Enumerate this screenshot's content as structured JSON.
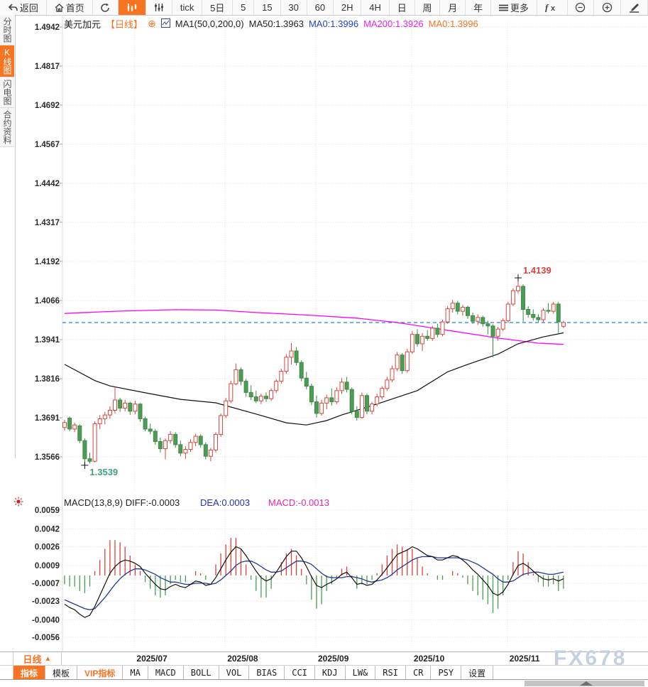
{
  "toolbar": {
    "items": [
      {
        "id": "back",
        "icon": "back-arrow-icon",
        "label": "返回"
      },
      {
        "id": "home",
        "icon": "home-icon",
        "label": "首页"
      },
      {
        "id": "refresh",
        "icon": "refresh-icon",
        "label": ""
      },
      {
        "id": "candle-chart",
        "icon": "candle-chart-icon",
        "label": "",
        "active": true
      },
      {
        "id": "indicator-sliders",
        "icon": "sliders-icon",
        "label": ""
      },
      {
        "id": "tick",
        "label": "tick"
      },
      {
        "id": "5d",
        "label": "5日"
      },
      {
        "id": "m5",
        "label": "5"
      },
      {
        "id": "m15",
        "label": "15"
      },
      {
        "id": "m30",
        "label": "30"
      },
      {
        "id": "m60",
        "label": "60"
      },
      {
        "id": "h2",
        "label": "2H"
      },
      {
        "id": "h4",
        "label": "4H"
      },
      {
        "id": "day",
        "label": "日"
      },
      {
        "id": "week",
        "label": "周"
      },
      {
        "id": "month",
        "label": "月"
      },
      {
        "id": "year",
        "label": "年"
      },
      {
        "id": "more",
        "icon": "menu-icon",
        "label": "更多"
      },
      {
        "id": "fx",
        "icon": "fx-icon",
        "label": ""
      },
      {
        "id": "zoom-out",
        "icon": "zoom-out-icon",
        "label": ""
      },
      {
        "id": "zoom-in",
        "icon": "zoom-in-icon",
        "label": ""
      },
      {
        "id": "draw",
        "icon": "pen-icon",
        "label": ""
      }
    ]
  },
  "sidebar": {
    "tabs": [
      {
        "label": "分时图",
        "active": false
      },
      {
        "label": "K线图",
        "active": true
      },
      {
        "label": "闪电图",
        "active": false
      },
      {
        "label": "合约资料",
        "active": false
      }
    ]
  },
  "price_header": {
    "symbol": "美元加元",
    "period": "【日线】",
    "plus_icon": "⊕",
    "ma_settings": "MA1(50,0,200,0)",
    "ma50_label": "MA50:1.3963",
    "ma0_blue_label": "MA0:1.3996",
    "ma200_label": "MA200:1.3926",
    "ma0_orange_label": "MA0:1.3996"
  },
  "macd_header": {
    "title": "MACD(13,8,9)",
    "diff_label": "DIFF:-0.0003",
    "dea_label": "DEA:0.0003",
    "macd_label": "MACD:-0.0013"
  },
  "bottom": {
    "period_label": "日线",
    "period_arrow": "▲",
    "tabs": [
      {
        "label": "指标",
        "active": true
      },
      {
        "label": "模板"
      },
      {
        "label": "VIP指标",
        "vip": true
      },
      {
        "label": "MA",
        "mono": true
      },
      {
        "label": "MACD",
        "mono": true
      },
      {
        "label": "BOLL",
        "mono": true
      },
      {
        "label": "VOL",
        "mono": true
      },
      {
        "label": "BIAS",
        "mono": true
      },
      {
        "label": "CCI",
        "mono": true
      },
      {
        "label": "KDJ",
        "mono": true
      },
      {
        "label": "LW&",
        "mono": true
      },
      {
        "label": "RSI",
        "mono": true
      },
      {
        "label": "CR",
        "mono": true
      },
      {
        "label": "PSY",
        "mono": true
      },
      {
        "label": "设置"
      }
    ],
    "watermark": "FX678"
  },
  "colors": {
    "accent_orange": "#f87421",
    "candle_up": "#d8443c",
    "candle_down_fill": "#4d9b55",
    "candle_down_stroke": "#3c8a46",
    "ma50_line": "#111111",
    "ma200_line": "#ff00ff",
    "diff_line": "#111111",
    "dea_line": "#223a8f",
    "last_price_line": "#1f7fe8",
    "annotation_high": "#d8443c",
    "annotation_low": "#3fa184",
    "grid": "#eedbdb",
    "header_blue": "#2244cc",
    "header_magenta": "#ee22ee",
    "macd_magenta": "#ee22aa"
  },
  "chart_data": {
    "type": "candlestick",
    "title": "美元加元 日线 (USD/CAD daily)",
    "price_axis_ticks": [
      1.4942,
      1.4817,
      1.4692,
      1.4567,
      1.4442,
      1.4317,
      1.4192,
      1.4066,
      1.3941,
      1.3816,
      1.3691,
      1.3566
    ],
    "x_labels": [
      "2025/07",
      "2025/08",
      "2025/09",
      "2025/10",
      "2025/11"
    ],
    "x_label_days": [
      14,
      32,
      50,
      69,
      88
    ],
    "last_price_line": 1.3996,
    "high_annotation": {
      "day": 90,
      "price": 1.4139,
      "label": "1.4139"
    },
    "low_annotation": {
      "day": 4,
      "price": 1.3539,
      "label": "1.3539"
    },
    "candles_ohlc": [
      [
        1.366,
        1.3685,
        1.365,
        1.3676
      ],
      [
        1.369,
        1.3695,
        1.3648,
        1.3655
      ],
      [
        1.3655,
        1.3675,
        1.3645,
        1.3668
      ],
      [
        1.3665,
        1.367,
        1.361,
        1.3618
      ],
      [
        1.3618,
        1.3625,
        1.3539,
        1.356
      ],
      [
        1.356,
        1.358,
        1.3545,
        1.3552
      ],
      [
        1.3552,
        1.368,
        1.3548,
        1.3672
      ],
      [
        1.3672,
        1.37,
        1.3655,
        1.3688
      ],
      [
        1.3688,
        1.371,
        1.367,
        1.37
      ],
      [
        1.37,
        1.3728,
        1.3688,
        1.3715
      ],
      [
        1.3715,
        1.379,
        1.3705,
        1.3748
      ],
      [
        1.3748,
        1.3755,
        1.371,
        1.3722
      ],
      [
        1.3722,
        1.3748,
        1.3712,
        1.3738
      ],
      [
        1.3738,
        1.3742,
        1.37,
        1.3712
      ],
      [
        1.3712,
        1.3745,
        1.3702,
        1.3735
      ],
      [
        1.3735,
        1.3738,
        1.3678,
        1.3688
      ],
      [
        1.3688,
        1.3695,
        1.3648,
        1.3655
      ],
      [
        1.3655,
        1.3672,
        1.3638,
        1.3648
      ],
      [
        1.3648,
        1.3655,
        1.3605,
        1.3615
      ],
      [
        1.3615,
        1.3628,
        1.358,
        1.3592
      ],
      [
        1.3592,
        1.3625,
        1.3558,
        1.3618
      ],
      [
        1.3618,
        1.3648,
        1.3608,
        1.3638
      ],
      [
        1.3638,
        1.3645,
        1.3595,
        1.3605
      ],
      [
        1.3605,
        1.3618,
        1.3568,
        1.3578
      ],
      [
        1.3578,
        1.36,
        1.356,
        1.359
      ],
      [
        1.359,
        1.3622,
        1.3582,
        1.3612
      ],
      [
        1.3612,
        1.364,
        1.36,
        1.3632
      ],
      [
        1.3632,
        1.3638,
        1.3595,
        1.3605
      ],
      [
        1.3605,
        1.3612,
        1.3558,
        1.3568
      ],
      [
        1.3568,
        1.3595,
        1.3552,
        1.3588
      ],
      [
        1.3588,
        1.3645,
        1.358,
        1.3638
      ],
      [
        1.3638,
        1.3705,
        1.363,
        1.3698
      ],
      [
        1.3698,
        1.3755,
        1.369,
        1.3745
      ],
      [
        1.3745,
        1.381,
        1.3738,
        1.38
      ],
      [
        1.38,
        1.3865,
        1.3795,
        1.3845
      ],
      [
        1.3845,
        1.3852,
        1.3795,
        1.3808
      ],
      [
        1.3808,
        1.3815,
        1.3758,
        1.3772
      ],
      [
        1.3772,
        1.3795,
        1.3748,
        1.3758
      ],
      [
        1.3758,
        1.3778,
        1.3738,
        1.3745
      ],
      [
        1.3745,
        1.3768,
        1.3735,
        1.376
      ],
      [
        1.376,
        1.3772,
        1.3742,
        1.3752
      ],
      [
        1.3752,
        1.3785,
        1.3745,
        1.3778
      ],
      [
        1.3778,
        1.3815,
        1.377,
        1.3808
      ],
      [
        1.3808,
        1.3848,
        1.38,
        1.384
      ],
      [
        1.384,
        1.3895,
        1.3832,
        1.3885
      ],
      [
        1.3885,
        1.393,
        1.3862,
        1.3905
      ],
      [
        1.3905,
        1.3918,
        1.3858,
        1.3868
      ],
      [
        1.3868,
        1.3875,
        1.3808,
        1.3818
      ],
      [
        1.3818,
        1.3838,
        1.3782,
        1.3792
      ],
      [
        1.3792,
        1.38,
        1.3732,
        1.3742
      ],
      [
        1.3742,
        1.3762,
        1.3692,
        1.3705
      ],
      [
        1.3705,
        1.3748,
        1.3698,
        1.3738
      ],
      [
        1.3738,
        1.3765,
        1.3718,
        1.3755
      ],
      [
        1.3755,
        1.3785,
        1.373,
        1.3742
      ],
      [
        1.3742,
        1.3788,
        1.3735,
        1.3778
      ],
      [
        1.3778,
        1.3818,
        1.3768,
        1.3805
      ],
      [
        1.3805,
        1.3822,
        1.3772,
        1.3782
      ],
      [
        1.3782,
        1.3788,
        1.3702,
        1.3712
      ],
      [
        1.3712,
        1.3728,
        1.3682,
        1.3692
      ],
      [
        1.3692,
        1.3772,
        1.3688,
        1.3762
      ],
      [
        1.3762,
        1.3768,
        1.3702,
        1.3712
      ],
      [
        1.3712,
        1.3742,
        1.3702,
        1.3735
      ],
      [
        1.3735,
        1.3768,
        1.3728,
        1.3758
      ],
      [
        1.3758,
        1.3792,
        1.375,
        1.3785
      ],
      [
        1.3785,
        1.3822,
        1.3778,
        1.3812
      ],
      [
        1.3812,
        1.3858,
        1.3805,
        1.3848
      ],
      [
        1.3848,
        1.3902,
        1.384,
        1.3892
      ],
      [
        1.3892,
        1.3898,
        1.3832,
        1.3842
      ],
      [
        1.3842,
        1.3912,
        1.3835,
        1.3902
      ],
      [
        1.3902,
        1.3968,
        1.3895,
        1.3958
      ],
      [
        1.3958,
        1.3975,
        1.3918,
        1.3928
      ],
      [
        1.3928,
        1.3962,
        1.3905,
        1.3952
      ],
      [
        1.3952,
        1.3972,
        1.3938,
        1.3945
      ],
      [
        1.3945,
        1.3985,
        1.3938,
        1.3978
      ],
      [
        1.3978,
        1.3992,
        1.3948,
        1.3958
      ],
      [
        1.3958,
        1.4005,
        1.3952,
        1.3998
      ],
      [
        1.3998,
        1.4048,
        1.3992,
        1.404
      ],
      [
        1.404,
        1.4068,
        1.4028,
        1.4058
      ],
      [
        1.4058,
        1.4065,
        1.4022,
        1.4032
      ],
      [
        1.4032,
        1.4052,
        1.4018,
        1.4045
      ],
      [
        1.4045,
        1.405,
        1.4008,
        1.4018
      ],
      [
        1.4018,
        1.4028,
        1.3992,
        1.4
      ],
      [
        1.4,
        1.4022,
        1.3988,
        1.4012
      ],
      [
        1.4012,
        1.4018,
        1.3982,
        1.3992
      ],
      [
        1.3992,
        1.4002,
        1.3958,
        1.3985
      ],
      [
        1.3985,
        1.399,
        1.3885,
        1.3952
      ],
      [
        1.3952,
        1.3982,
        1.3938,
        1.3975
      ],
      [
        1.3975,
        1.401,
        1.3968,
        1.4002
      ],
      [
        1.4002,
        1.4062,
        1.3995,
        1.4055
      ],
      [
        1.4055,
        1.4105,
        1.4048,
        1.4098
      ],
      [
        1.4098,
        1.4139,
        1.4088,
        1.4112
      ],
      [
        1.4112,
        1.4118,
        1.3998,
        1.4038
      ],
      [
        1.4038,
        1.4048,
        1.4012,
        1.4022
      ],
      [
        1.4022,
        1.4038,
        1.4002,
        1.4012
      ],
      [
        1.4012,
        1.4022,
        1.3995,
        1.4005
      ],
      [
        1.4005,
        1.4042,
        1.3998,
        1.4035
      ],
      [
        1.4035,
        1.4058,
        1.4025,
        1.4032
      ],
      [
        1.4032,
        1.4062,
        1.4025,
        1.4055
      ],
      [
        1.4055,
        1.4062,
        1.3962,
        1.3998
      ],
      [
        1.3984,
        1.4002,
        1.3978,
        1.3996
      ]
    ],
    "ma50_points": [
      [
        0,
        1.3862
      ],
      [
        6,
        1.381
      ],
      [
        9,
        1.3793
      ],
      [
        16,
        1.3771
      ],
      [
        23,
        1.375
      ],
      [
        30,
        1.3739
      ],
      [
        38,
        1.3703
      ],
      [
        44,
        1.3675
      ],
      [
        48,
        1.3668
      ],
      [
        52,
        1.3682
      ],
      [
        55,
        1.37
      ],
      [
        62,
        1.3735
      ],
      [
        70,
        1.3778
      ],
      [
        76,
        1.3838
      ],
      [
        80,
        1.3862
      ],
      [
        86,
        1.3895
      ],
      [
        90,
        1.3928
      ],
      [
        95,
        1.395
      ],
      [
        99,
        1.3963
      ]
    ],
    "ma200_points": [
      [
        0,
        1.4025
      ],
      [
        10,
        1.4032
      ],
      [
        22,
        1.4037
      ],
      [
        30,
        1.4036
      ],
      [
        38,
        1.4028
      ],
      [
        48,
        1.402
      ],
      [
        58,
        1.401
      ],
      [
        66,
        1.3996
      ],
      [
        76,
        1.3971
      ],
      [
        86,
        1.3946
      ],
      [
        94,
        1.393
      ],
      [
        99,
        1.3926
      ]
    ],
    "macd": {
      "axis_ticks": [
        0.0059,
        0.0042,
        0.0026,
        0.0009,
        -0.0007,
        -0.0023,
        -0.004,
        -0.0056
      ],
      "diff": [
        -0.0026,
        -0.0029,
        -0.0031,
        -0.0035,
        -0.0038,
        -0.0036,
        -0.0028,
        -0.0018,
        -0.0008,
        0.0002,
        0.0008,
        0.0012,
        0.0014,
        0.0013,
        0.0011,
        0.0008,
        0.0002,
        -0.0003,
        -0.0008,
        -0.0012,
        -0.0013,
        -0.001,
        -0.0008,
        -0.001,
        -0.0011,
        -0.0008,
        -0.0005,
        -0.0006,
        -0.0009,
        -0.0008,
        -0.0002,
        0.0006,
        0.0014,
        0.0021,
        0.0026,
        0.0024,
        0.0018,
        0.0011,
        0.0004,
        -0.0002,
        -0.0005,
        -0.0003,
        0.0003,
        0.001,
        0.0017,
        0.0022,
        0.0022,
        0.0016,
        0.0008,
        -0.0001,
        -0.0009,
        -0.0011,
        -0.0008,
        -0.0006,
        -0.0003,
        0.0001,
        0.0003,
        -0.0002,
        -0.0008,
        -0.0007,
        -0.0009,
        -0.0008,
        -0.0004,
        0.0001,
        0.0007,
        0.0013,
        0.0019,
        0.0021,
        0.0023,
        0.0026,
        0.0024,
        0.0021,
        0.0018,
        0.0017,
        0.0014,
        0.0014,
        0.0016,
        0.0018,
        0.0017,
        0.0014,
        0.001,
        0.0005,
        0.0001,
        -0.0004,
        -0.0009,
        -0.0016,
        -0.0018,
        -0.0015,
        -0.0008,
        0.0001,
        0.0009,
        0.0011,
        0.0008,
        0.0004,
        0.0,
        -0.0003,
        -0.0004,
        -0.0003,
        -0.0005,
        -0.0003
      ],
      "dea": [
        -0.0022,
        -0.0024,
        -0.0026,
        -0.0028,
        -0.003,
        -0.0031,
        -0.003,
        -0.0025,
        -0.002,
        -0.0014,
        -0.0008,
        -0.0003,
        0.0001,
        0.0004,
        0.0006,
        0.0006,
        0.0005,
        0.0003,
        0.0001,
        -0.0002,
        -0.0004,
        -0.0006,
        -0.0006,
        -0.0007,
        -0.0008,
        -0.0008,
        -0.0007,
        -0.0007,
        -0.0007,
        -0.0008,
        -0.0007,
        -0.0004,
        0.0,
        0.0004,
        0.0009,
        0.0012,
        0.0013,
        0.0013,
        0.0011,
        0.0008,
        0.0005,
        0.0003,
        0.0003,
        0.0004,
        0.0007,
        0.001,
        0.0013,
        0.0013,
        0.0012,
        0.001,
        0.0006,
        0.0002,
        -0.0001,
        -0.0002,
        -0.0002,
        -0.0002,
        -0.0001,
        -0.0001,
        -0.0002,
        -0.0003,
        -0.0005,
        -0.0006,
        -0.0005,
        -0.0004,
        -0.0002,
        0.0001,
        0.0005,
        0.0008,
        0.0011,
        0.0014,
        0.0016,
        0.0017,
        0.0017,
        0.0017,
        0.0016,
        0.0016,
        0.0016,
        0.0016,
        0.0016,
        0.0015,
        0.0014,
        0.0012,
        0.001,
        0.0007,
        0.0004,
        0.0001,
        -0.0003,
        -0.0006,
        -0.0006,
        -0.0005,
        -0.0002,
        0.0001,
        0.0002,
        0.0003,
        0.0003,
        0.0002,
        0.0001,
        0.0001,
        0.0002,
        0.0003
      ]
    }
  }
}
